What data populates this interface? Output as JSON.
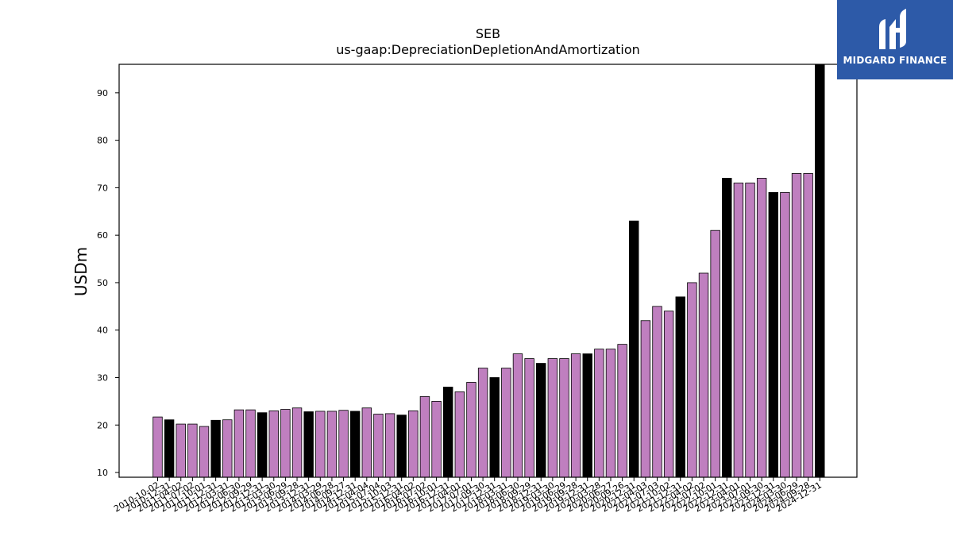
{
  "chart_data": {
    "type": "bar",
    "title": "SEB",
    "subtitle": "us-gaap:DepreciationDepletionAndAmortization",
    "xlabel": "",
    "ylabel": "USDm",
    "ylim": [
      9,
      96
    ],
    "yticks": [
      10,
      20,
      30,
      40,
      50,
      60,
      70,
      80,
      90
    ],
    "grid": false,
    "legend": "none",
    "colors": {
      "quarter": "#bf7fbf",
      "annual": "#000000",
      "edge": "#000000"
    },
    "categories": [
      "2010-10-02",
      "2010-12-31",
      "2011-04-02",
      "2011-07-02",
      "2011-10-01",
      "2011-12-31",
      "2012-03-31",
      "2012-06-30",
      "2012-09-29",
      "2012-12-31",
      "2013-03-30",
      "2013-06-29",
      "2013-09-28",
      "2013-12-31",
      "2014-03-29",
      "2014-06-28",
      "2014-09-27",
      "2014-12-31",
      "2015-04-04",
      "2015-07-04",
      "2015-10-03",
      "2015-12-31",
      "2016-04-02",
      "2016-07-02",
      "2016-10-01",
      "2016-12-31",
      "2017-04-01",
      "2017-07-01",
      "2017-09-30",
      "2017-12-31",
      "2018-03-31",
      "2018-06-30",
      "2018-09-29",
      "2018-12-31",
      "2019-03-30",
      "2019-06-29",
      "2019-09-28",
      "2019-12-31",
      "2020-03-28",
      "2020-06-27",
      "2020-09-26",
      "2020-12-31",
      "2021-04-03",
      "2021-07-03",
      "2021-10-02",
      "2021-12-31",
      "2022-04-02",
      "2022-07-02",
      "2022-10-01",
      "2022-12-31",
      "2023-04-01",
      "2023-07-01",
      "2023-09-30",
      "2023-12-31",
      "2024-03-30",
      "2024-06-29",
      "2024-09-28",
      "2024-12-31"
    ],
    "values": [
      21.7,
      21.1,
      20.2,
      20.2,
      19.7,
      21.0,
      21.1,
      23.2,
      23.2,
      22.6,
      23.0,
      23.3,
      23.6,
      22.8,
      22.9,
      22.9,
      23.1,
      22.9,
      23.6,
      22.3,
      22.4,
      22.1,
      23.0,
      26.0,
      25.0,
      28.0,
      27.0,
      29.0,
      32.0,
      30.0,
      32.0,
      35.0,
      34.0,
      33.0,
      34.0,
      34.0,
      35.0,
      35.0,
      36.0,
      36.0,
      37.0,
      63.0,
      42.0,
      45.0,
      44.0,
      47.0,
      50.0,
      52.0,
      61.0,
      72.0,
      71.0,
      71.0,
      72.0,
      69.0,
      69.0,
      73.0,
      73.0,
      96.0
    ],
    "annual": [
      false,
      true,
      false,
      false,
      false,
      true,
      false,
      false,
      false,
      true,
      false,
      false,
      false,
      true,
      false,
      false,
      false,
      true,
      false,
      false,
      false,
      true,
      false,
      false,
      false,
      true,
      false,
      false,
      false,
      true,
      false,
      false,
      false,
      true,
      false,
      false,
      false,
      true,
      false,
      false,
      false,
      true,
      false,
      false,
      false,
      true,
      false,
      false,
      false,
      true,
      false,
      false,
      false,
      true,
      false,
      false,
      false,
      true
    ]
  },
  "logo": {
    "text": "MIDGARD FINANCE",
    "icon": "midgard-logo-icon",
    "background": "#2d5aa8"
  }
}
